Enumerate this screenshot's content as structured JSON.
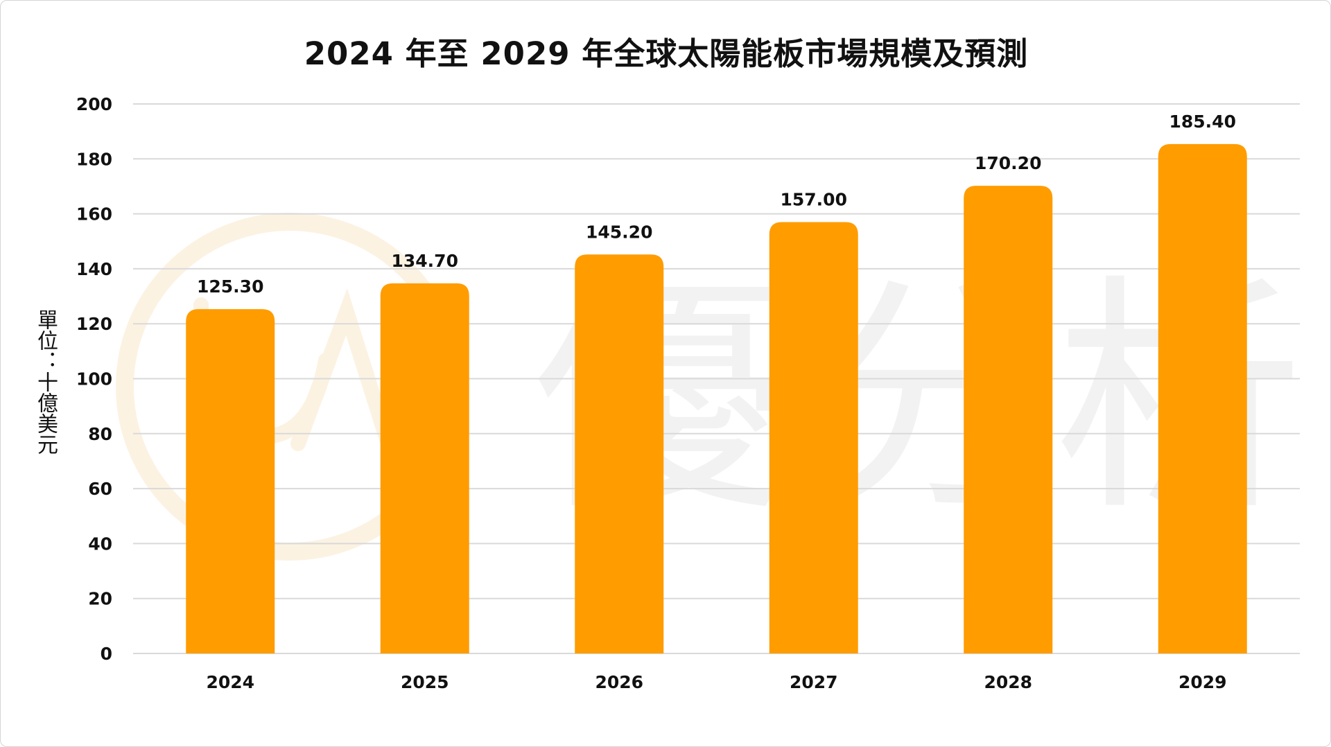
{
  "title": "2024 年至 2029 年全球太陽能板市場規模及預測",
  "watermark": "優分析",
  "colors": {
    "bar": "#ff9c00",
    "grid": "#d9d9d9",
    "text": "#111111",
    "watermark": "#f2f2f2"
  },
  "chart_data": {
    "type": "bar",
    "title": "2024 年至 2029 年全球太陽能板市場規模及預測",
    "xlabel": "",
    "ylabel": "單位：十億美元",
    "categories": [
      "2024",
      "2025",
      "2026",
      "2027",
      "2028",
      "2029"
    ],
    "values": [
      125.3,
      134.7,
      145.2,
      157.0,
      170.2,
      185.4
    ],
    "value_labels": [
      "125.30",
      "134.70",
      "145.20",
      "157.00",
      "170.20",
      "185.40"
    ],
    "ylim": [
      0,
      200
    ],
    "yticks": [
      0,
      20,
      40,
      60,
      80,
      100,
      120,
      140,
      160,
      180,
      200
    ],
    "grid": true,
    "legend": "none"
  }
}
